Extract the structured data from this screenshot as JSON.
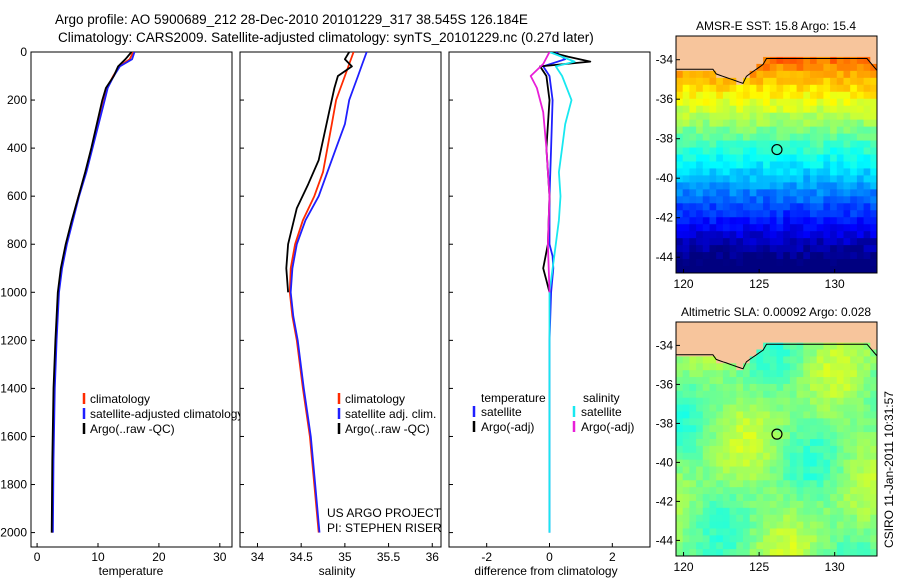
{
  "header": {
    "line1": "Argo profile: AO 5900689_212 28-Dec-2010 20101229_317 38.545S 126.184E",
    "line2": "Climatology: CARS2009. Satellite-adjusted climatology: synTS_20101229.nc (0.27d later)"
  },
  "side_stamp": "CSIRO 11-Jan-2011 10:31:57",
  "project_note": [
    "US ARGO PROJECT",
    "PI: STEPHEN RISER"
  ],
  "colors": {
    "climatology": "#ff2a00",
    "satellite": "#1f1fff",
    "argo": "#000000",
    "satellite_salinity": "#18e8f0",
    "argo_adj_salinity": "#e81fd8",
    "land": "#f7c59c"
  },
  "chart_data": [
    {
      "type": "line",
      "xlabel": "temperature",
      "ylabel": "",
      "xlim": [
        -1,
        32
      ],
      "ylim": [
        2060,
        0
      ],
      "xticks": [
        0,
        10,
        20,
        30
      ],
      "yticks": [
        0,
        200,
        400,
        600,
        800,
        1000,
        1200,
        1400,
        1600,
        1800,
        2000
      ],
      "legend": [
        "climatology",
        "satellite-adjusted climatology",
        "Argo(..raw -QC)"
      ],
      "series": [
        {
          "name": "climatology",
          "color": "#ff2a00",
          "x": [
            15.8,
            15.2,
            13.5,
            12.5,
            11.5,
            11.0,
            10.0,
            9.0,
            8.0,
            6.8,
            5.8,
            4.8,
            4.0,
            3.5,
            3.1,
            2.8,
            2.6,
            2.5
          ],
          "y": [
            0,
            30,
            60,
            100,
            150,
            200,
            300,
            400,
            500,
            600,
            700,
            800,
            900,
            1000,
            1200,
            1400,
            1700,
            2000
          ]
        },
        {
          "name": "satellite-adjusted climatology",
          "color": "#1f1fff",
          "x": [
            16.0,
            15.6,
            13.6,
            12.6,
            11.6,
            11.1,
            10.1,
            9.1,
            8.1,
            6.9,
            5.9,
            4.9,
            4.1,
            3.6,
            3.2,
            2.9,
            2.7,
            2.6
          ],
          "y": [
            0,
            30,
            60,
            100,
            150,
            200,
            300,
            400,
            500,
            600,
            700,
            800,
            900,
            1000,
            1200,
            1400,
            1700,
            2000
          ]
        },
        {
          "name": "Argo(..raw -QC)",
          "color": "#000000",
          "x": [
            15.5,
            14.5,
            13.3,
            12.6,
            11.3,
            10.7,
            9.8,
            8.9,
            7.9,
            6.8,
            5.7,
            4.7,
            3.9,
            3.4,
            3.0,
            2.7,
            2.5,
            2.4
          ],
          "y": [
            0,
            30,
            60,
            100,
            150,
            200,
            300,
            400,
            500,
            600,
            700,
            800,
            900,
            1000,
            1200,
            1400,
            1700,
            2000
          ]
        }
      ]
    },
    {
      "type": "line",
      "xlabel": "salinity",
      "ylabel": "",
      "xlim": [
        33.8,
        36.1
      ],
      "ylim": [
        2060,
        0
      ],
      "xticks": [
        34,
        34.5,
        35,
        35.5,
        36
      ],
      "yticks": [
        0,
        200,
        400,
        600,
        800,
        1000,
        1200,
        1400,
        1600,
        1800,
        2000
      ],
      "legend": [
        "climatology",
        "satellite adj. clim.",
        "Argo(..raw -QC)"
      ],
      "series": [
        {
          "name": "climatology",
          "color": "#ff2a00",
          "x": [
            35.1,
            35.05,
            35.0,
            34.95,
            34.9,
            34.85,
            34.8,
            34.75,
            34.65,
            34.52,
            34.43,
            34.38,
            34.37,
            34.4,
            34.45,
            34.52,
            34.6,
            34.65,
            34.7
          ],
          "y": [
            0,
            50,
            100,
            150,
            200,
            300,
            400,
            500,
            600,
            700,
            800,
            900,
            1000,
            1100,
            1200,
            1400,
            1600,
            1800,
            2000
          ]
        },
        {
          "name": "satellite adj. clim.",
          "color": "#1f1fff",
          "x": [
            35.25,
            35.2,
            35.15,
            35.1,
            35.05,
            35.0,
            34.9,
            34.8,
            34.7,
            34.55,
            34.45,
            34.4,
            34.38,
            34.41,
            34.46,
            34.53,
            34.61,
            34.66,
            34.71
          ],
          "y": [
            0,
            50,
            100,
            150,
            200,
            300,
            400,
            500,
            600,
            700,
            800,
            900,
            1000,
            1100,
            1200,
            1400,
            1600,
            1800,
            2000
          ]
        },
        {
          "name": "Argo(..raw -QC)",
          "color": "#000000",
          "x": [
            35.05,
            35.0,
            35.08,
            34.92,
            34.88,
            34.82,
            34.76,
            34.7,
            34.58,
            34.45,
            34.35,
            34.33,
            34.35
          ],
          "y": [
            0,
            30,
            60,
            100,
            150,
            250,
            350,
            450,
            550,
            650,
            800,
            900,
            1000
          ]
        }
      ]
    },
    {
      "type": "line",
      "xlabel": "difference from climatology",
      "ylabel": "",
      "xlim": [
        -3.2,
        3.2
      ],
      "ylim": [
        2060,
        0
      ],
      "xticks": [
        -2,
        0,
        2
      ],
      "yticks": [
        0,
        200,
        400,
        600,
        800,
        1000,
        1200,
        1400,
        1600,
        1800,
        2000
      ],
      "legend": [
        "temperature",
        "satellite",
        "Argo(-adj)",
        "salinity",
        "satellite",
        "Argo(-adj)"
      ],
      "series": [
        {
          "name": "satellite",
          "color": "#1f1fff",
          "x": [
            0.2,
            0.5,
            -0.2,
            0.0,
            0.1,
            0.05,
            0.0,
            0.0,
            0.1,
            0.12,
            0.05,
            0.0,
            0.0
          ],
          "y": [
            0,
            30,
            60,
            100,
            200,
            400,
            600,
            800,
            850,
            900,
            1000,
            1200,
            2000
          ]
        },
        {
          "name": "Argo(-adj)",
          "color": "#000000",
          "x": [
            0.0,
            0.6,
            1.3,
            -0.3,
            -0.1,
            0.0,
            -0.1,
            0.0,
            -0.05,
            -0.2,
            -0.1,
            0.0
          ],
          "y": [
            0,
            20,
            40,
            60,
            100,
            200,
            400,
            600,
            800,
            900,
            950,
            1000
          ]
        },
        {
          "name": "satellite",
          "color": "#18e8f0",
          "x": [
            0.0,
            0.8,
            0.2,
            0.4,
            0.7,
            0.5,
            0.4,
            0.3,
            0.35,
            0.3,
            0.2,
            0.0,
            0.0
          ],
          "y": [
            0,
            40,
            60,
            100,
            200,
            300,
            400,
            500,
            600,
            700,
            800,
            1000,
            2000
          ]
        },
        {
          "name": "Argo(-adj)",
          "color": "#e81fd8",
          "x": [
            0.0,
            -0.2,
            -0.6,
            -0.4,
            -0.2,
            -0.1,
            0.0,
            -0.05,
            0.0
          ],
          "y": [
            0,
            50,
            100,
            150,
            250,
            400,
            600,
            800,
            1000
          ]
        }
      ]
    }
  ],
  "maps": [
    {
      "type": "heatmap",
      "title": "AMSR-E SST: 15.8 Argo: 15.4",
      "xticks": [
        120,
        125,
        130
      ],
      "yticks": [
        -34,
        -36,
        -38,
        -40,
        -42,
        -44
      ],
      "xlim": [
        119.5,
        132.8
      ],
      "ylim": [
        -32.8,
        -44.8
      ],
      "marker": {
        "lon": 126.18,
        "lat": -38.55
      }
    },
    {
      "type": "heatmap",
      "title": "Altimetric SLA: 0.00092 Argo: 0.028",
      "xticks": [
        120,
        125,
        130
      ],
      "yticks": [
        -34,
        -36,
        -38,
        -40,
        -42,
        -44
      ],
      "xlim": [
        119.5,
        132.8
      ],
      "ylim": [
        -32.8,
        -44.8
      ],
      "marker": {
        "lon": 126.18,
        "lat": -38.55
      }
    }
  ]
}
